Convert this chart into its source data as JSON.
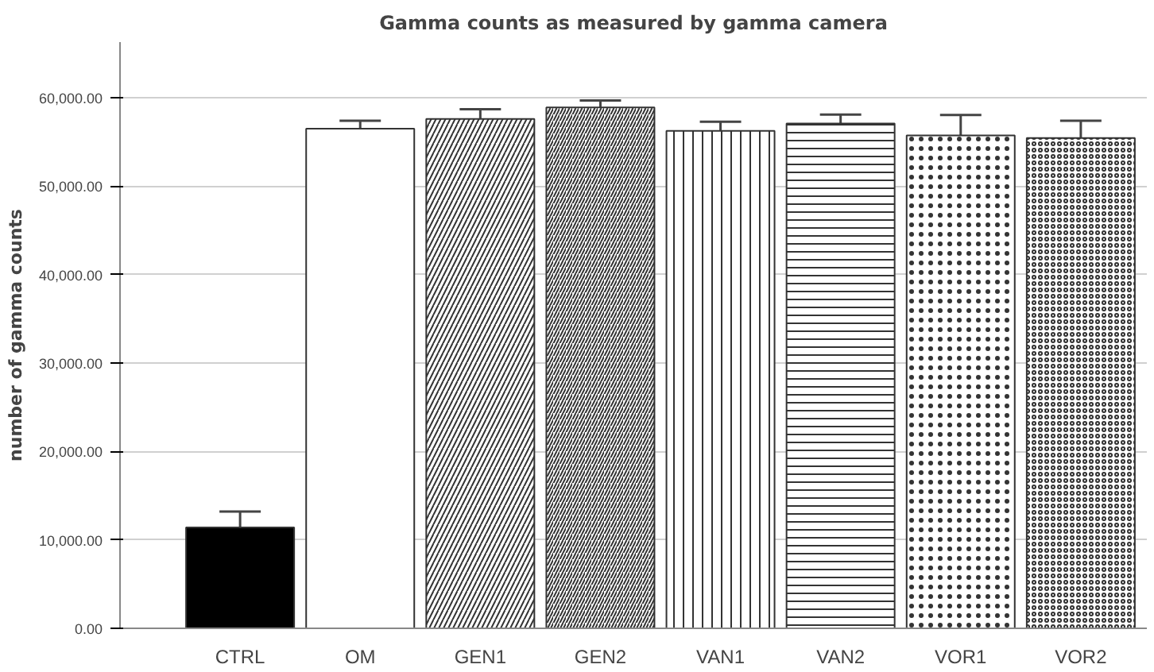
{
  "chart_data": {
    "type": "bar",
    "title": "Gamma counts as measured by gamma camera",
    "ylabel": "number of gamma counts",
    "categories": [
      "CTRL",
      "OM",
      "GEN1",
      "GEN2",
      "VAN1",
      "VAN2",
      "VOR1",
      "VOR2"
    ],
    "values": [
      11400,
      56500,
      57600,
      58900,
      56250,
      57100,
      55750,
      55450
    ],
    "errors": [
      1800,
      900,
      1100,
      800,
      1050,
      1000,
      2300,
      1950
    ],
    "colors": [
      "#000000",
      "#ffffff",
      "#ffffff",
      "#ffffff",
      "#ffffff",
      "#ffffff",
      "#ffffff",
      "#ffffff"
    ],
    "ylim": [
      0,
      66300
    ],
    "yticks": [
      {
        "value": 0,
        "label": "0.00"
      },
      {
        "value": 10000,
        "label": "10,000.00"
      },
      {
        "value": 20000,
        "label": "20,000.00"
      },
      {
        "value": 30000,
        "label": "30,000.00"
      },
      {
        "value": 40000,
        "label": "40,000.00"
      },
      {
        "value": 50000,
        "label": "50,000.00"
      },
      {
        "value": 60000,
        "label": "60,000.00"
      }
    ],
    "grid": "y"
  }
}
